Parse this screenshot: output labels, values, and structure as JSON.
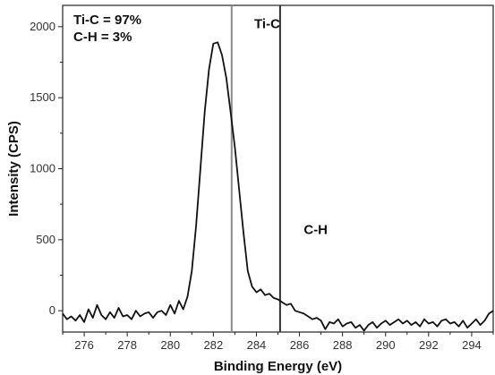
{
  "chart_data": {
    "type": "line",
    "xlabel": "Binding Energy (eV)",
    "ylabel": "Intensity (CPS)",
    "xlim": [
      275,
      295
    ],
    "ylim": [
      -150,
      2150
    ],
    "x_ticks": [
      276,
      278,
      280,
      282,
      284,
      286,
      288,
      290,
      292,
      294
    ],
    "y_ticks": [
      0,
      500,
      1000,
      1500,
      2000
    ],
    "grid": false,
    "legend_lines": [
      "Ti-C = 97%",
      "C-H = 3%"
    ],
    "annotations": [
      {
        "text": "Ti-C",
        "x": 283.9,
        "y": 1990
      },
      {
        "text": "C-H",
        "x": 286.2,
        "y": 540
      }
    ],
    "vertical_lines": [
      {
        "x": 282.85,
        "color": "#8a8a8a"
      },
      {
        "x": 285.1,
        "color": "#333333"
      }
    ],
    "series": [
      {
        "x": [
          275.0,
          275.2,
          275.4,
          275.6,
          275.8,
          276.0,
          276.2,
          276.4,
          276.6,
          276.8,
          277.0,
          277.2,
          277.4,
          277.6,
          277.8,
          278.0,
          278.2,
          278.4,
          278.6,
          278.8,
          279.0,
          279.2,
          279.4,
          279.6,
          279.8,
          280.0,
          280.2,
          280.4,
          280.6,
          280.8,
          281.0,
          281.2,
          281.4,
          281.6,
          281.8,
          282.0,
          282.2,
          282.4,
          282.6,
          282.8,
          283.0,
          283.2,
          283.4,
          283.6,
          283.8,
          284.0,
          284.2,
          284.4,
          284.6,
          284.8,
          285.0,
          285.2,
          285.4,
          285.6,
          285.8,
          286.0,
          286.2,
          286.4,
          286.6,
          286.8,
          287.0,
          287.2,
          287.4,
          287.6,
          287.8,
          288.0,
          288.2,
          288.4,
          288.6,
          288.8,
          289.0,
          289.2,
          289.4,
          289.6,
          289.8,
          290.0,
          290.2,
          290.4,
          290.6,
          290.8,
          291.0,
          291.2,
          291.4,
          291.6,
          291.8,
          292.0,
          292.2,
          292.4,
          292.6,
          292.8,
          293.0,
          293.2,
          293.4,
          293.6,
          293.8,
          294.0,
          294.2,
          294.4,
          294.6,
          294.8,
          295.0
        ],
        "values": [
          -20,
          -60,
          -40,
          -70,
          -30,
          -80,
          10,
          -50,
          40,
          -30,
          -60,
          -10,
          -50,
          20,
          -40,
          -30,
          -60,
          0,
          -40,
          -20,
          -10,
          -50,
          -10,
          0,
          -30,
          40,
          -20,
          70,
          10,
          100,
          280,
          600,
          1000,
          1400,
          1700,
          1880,
          1890,
          1800,
          1640,
          1400,
          1150,
          850,
          550,
          280,
          170,
          130,
          150,
          110,
          120,
          90,
          80,
          60,
          40,
          50,
          0,
          -10,
          -20,
          -40,
          -60,
          -50,
          -70,
          -130,
          -80,
          -90,
          -60,
          -110,
          -90,
          -80,
          -120,
          -100,
          -140,
          -100,
          -80,
          -120,
          -90,
          -70,
          -100,
          -80,
          -60,
          -90,
          -70,
          -100,
          -80,
          -110,
          -60,
          -90,
          -80,
          -110,
          -70,
          -60,
          -90,
          -80,
          -110,
          -70,
          -120,
          -90,
          -60,
          -100,
          -70,
          -20,
          0
        ]
      }
    ]
  }
}
